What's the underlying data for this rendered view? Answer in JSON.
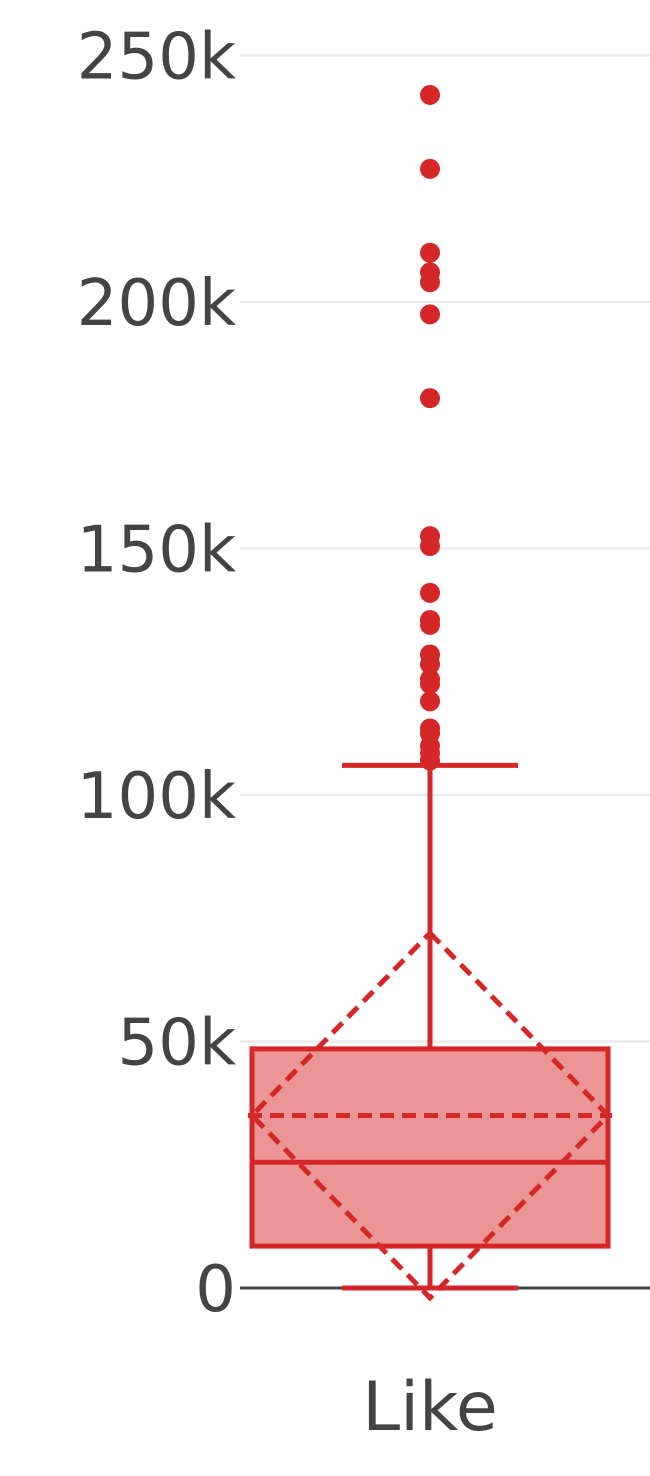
{
  "chart_data": {
    "type": "box",
    "title": "",
    "xlabel": "",
    "ylabel": "",
    "categories": [
      "Like"
    ],
    "ylim": [
      0,
      260000
    ],
    "y_ticks": [
      {
        "value": 0,
        "label": "0"
      },
      {
        "value": 50000,
        "label": "50k"
      },
      {
        "value": 100000,
        "label": "100k"
      },
      {
        "value": 150000,
        "label": "150k"
      },
      {
        "value": 200000,
        "label": "200k"
      },
      {
        "value": 250000,
        "label": "250k"
      }
    ],
    "grid": true,
    "color": "#d62728",
    "fill_color": "#ec9597",
    "box": {
      "lower_fence": 0,
      "q1": 8500,
      "median": 25500,
      "q3": 48500,
      "upper_fence": 106000,
      "mean": 35000,
      "sd": 37000
    },
    "outliers": [
      242000,
      227000,
      210000,
      206000,
      204000,
      197500,
      180500,
      152500,
      150500,
      141000,
      135500,
      134500,
      128500,
      126500,
      123500,
      122500,
      119000,
      113500,
      112500,
      110000,
      108500,
      107000
    ]
  }
}
